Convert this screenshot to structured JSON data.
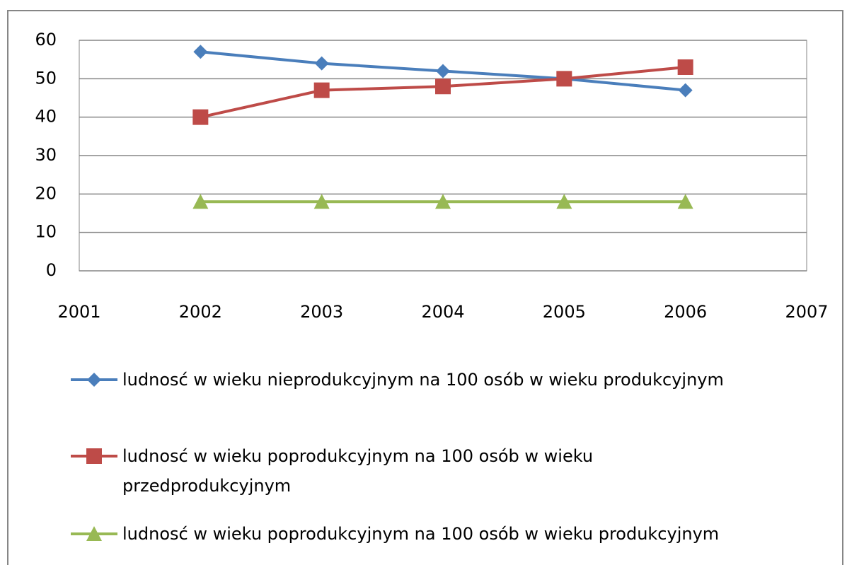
{
  "chart_data": {
    "type": "line",
    "x": [
      2002,
      2003,
      2004,
      2005,
      2006
    ],
    "xlim": [
      2001,
      2007
    ],
    "xticks": [
      2001,
      2002,
      2003,
      2004,
      2005,
      2006,
      2007
    ],
    "ylim": [
      0,
      60
    ],
    "yticks": [
      0,
      10,
      20,
      30,
      40,
      50,
      60
    ],
    "grid": true,
    "series": [
      {
        "name": "ludnosć w wieku nieprodukcyjnym na 100 osób w wieku produkcyjnym",
        "color": "#4a7ebb",
        "marker": "diamond",
        "values": [
          57,
          54,
          52,
          50,
          47
        ]
      },
      {
        "name": "ludnosć w wieku poprodukcyjnym na 100 osób w wieku przedprodukcyjnym",
        "color": "#be4b48",
        "marker": "square",
        "values": [
          40,
          47,
          48,
          50,
          53
        ]
      },
      {
        "name": "ludnosć w wieku poprodukcyjnym na 100 osób w wieku produkcyjnym",
        "color": "#98b954",
        "marker": "triangle",
        "values": [
          18,
          18,
          18,
          18,
          18
        ]
      }
    ],
    "legend": "bottom"
  }
}
